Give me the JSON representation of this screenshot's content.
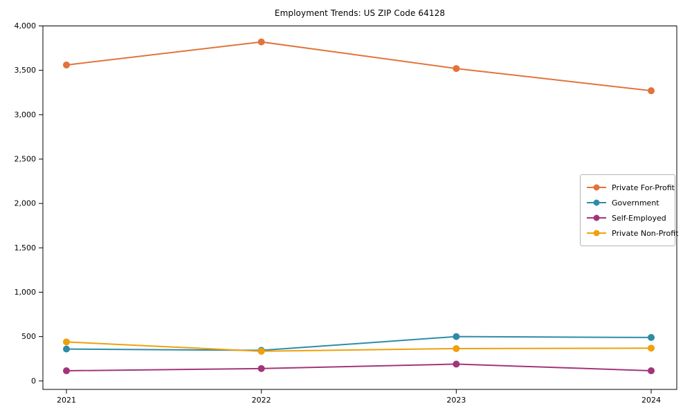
{
  "chart_data": {
    "type": "line",
    "title": "Employment Trends: US ZIP Code 64128",
    "categories": [
      "2021",
      "2022",
      "2023",
      "2024"
    ],
    "series": [
      {
        "name": "Private For-Profit",
        "color": "#E2733B",
        "values": [
          3560,
          3820,
          3520,
          3270
        ]
      },
      {
        "name": "Government",
        "color": "#2E8BA8",
        "values": [
          360,
          345,
          500,
          490
        ]
      },
      {
        "name": "Self-Employed",
        "color": "#A2357A",
        "values": [
          115,
          140,
          190,
          115
        ]
      },
      {
        "name": "Private Non-Profit",
        "color": "#EFA00B",
        "values": [
          440,
          335,
          365,
          370
        ]
      }
    ],
    "xlabel": "",
    "ylabel": "",
    "ylim": [
      -95,
      4000
    ],
    "y_ticks": [
      0,
      500,
      1000,
      1500,
      2000,
      2500,
      3000,
      3500,
      4000
    ],
    "y_tick_labels": [
      "0",
      "500",
      "1,000",
      "1,500",
      "2,000",
      "2,500",
      "3,000",
      "3,500",
      "4,000"
    ],
    "legend_position": "center right",
    "grid": false,
    "marker": "circle",
    "axis_color": "#000000"
  }
}
